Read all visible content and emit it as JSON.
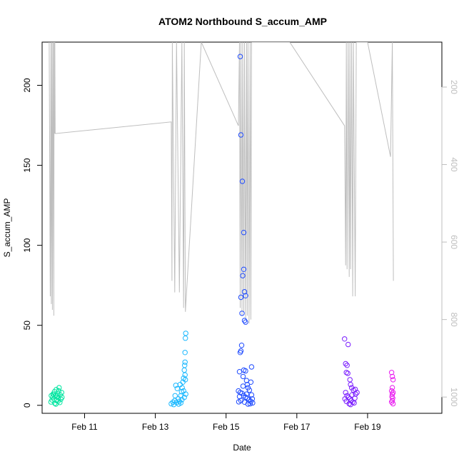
{
  "chart_data": {
    "type": "scatter",
    "title": "ATOM2 Northbound S_accum_AMP",
    "xlabel": "Date",
    "ylabel": "S_accum_AMP",
    "x_ticks": [
      "Feb 11",
      "Feb 13",
      "Feb 15",
      "Feb 17",
      "Feb 19"
    ],
    "x_tick_values": [
      11,
      13,
      15,
      17,
      19
    ],
    "xlim": [
      9.8,
      21.1
    ],
    "y_ticks": [
      0,
      50,
      100,
      150,
      200
    ],
    "ylim": [
      -5,
      227
    ],
    "y2_ticks": [
      200,
      400,
      600,
      800,
      1000
    ],
    "y2lim": [
      1042,
      84
    ],
    "y2_reversed": true,
    "grid": false,
    "legend": "none",
    "colors": {
      "cluster1": "#00e5a0",
      "cluster2": "#19b8ff",
      "cluster3": "#1f4bff",
      "cluster4": "#7a1cff",
      "cluster5": "#e91cf0",
      "secondary_line": "#bebebe"
    },
    "series": [
      {
        "color": "#00e5a0",
        "points": [
          [
            10.05,
            2.1
          ],
          [
            10.08,
            3.4
          ],
          [
            10.1,
            5.2
          ],
          [
            10.12,
            6.8
          ],
          [
            10.14,
            4.0
          ],
          [
            10.15,
            8.5
          ],
          [
            10.16,
            1.3
          ],
          [
            10.18,
            6.1
          ],
          [
            10.2,
            9.8
          ],
          [
            10.21,
            3.0
          ],
          [
            10.22,
            5.7
          ],
          [
            10.24,
            7.4
          ],
          [
            10.25,
            2.6
          ],
          [
            10.26,
            4.8
          ],
          [
            10.28,
            11.0
          ],
          [
            10.3,
            1.8
          ],
          [
            10.31,
            6.5
          ],
          [
            10.33,
            3.9
          ],
          [
            10.35,
            8.0
          ],
          [
            10.36,
            5.0
          ],
          [
            10.06,
            6.0
          ],
          [
            10.11,
            7.0
          ],
          [
            10.19,
            0.8
          ],
          [
            10.27,
            9.0
          ]
        ]
      },
      {
        "color": "#19b8ff",
        "points": [
          [
            13.45,
            1.0
          ],
          [
            13.5,
            2.0
          ],
          [
            13.52,
            0.5
          ],
          [
            13.55,
            3.0
          ],
          [
            13.58,
            12.5
          ],
          [
            13.6,
            1.8
          ],
          [
            13.62,
            10.5
          ],
          [
            13.65,
            4.0
          ],
          [
            13.68,
            2.5
          ],
          [
            13.7,
            13.0
          ],
          [
            13.72,
            6.0
          ],
          [
            13.74,
            8.5
          ],
          [
            13.75,
            3.5
          ],
          [
            13.76,
            11.0
          ],
          [
            13.78,
            14.5
          ],
          [
            13.8,
            17.0
          ],
          [
            13.8,
            9.0
          ],
          [
            13.82,
            5.0
          ],
          [
            13.82,
            22.0
          ],
          [
            13.83,
            25.0
          ],
          [
            13.84,
            27.0
          ],
          [
            13.84,
            33.0
          ],
          [
            13.85,
            42.0
          ],
          [
            13.86,
            45.0
          ],
          [
            13.85,
            16.0
          ],
          [
            13.86,
            7.0
          ],
          [
            13.84,
            19.0
          ],
          [
            13.56,
            6.0
          ],
          [
            13.66,
            0.8
          ],
          [
            13.72,
            1.5
          ]
        ]
      },
      {
        "color": "#1f4bff",
        "points": [
          [
            15.4,
            218.0
          ],
          [
            15.42,
            169.0
          ],
          [
            15.46,
            140.0
          ],
          [
            15.5,
            108.0
          ],
          [
            15.5,
            85.0
          ],
          [
            15.47,
            81.0
          ],
          [
            15.52,
            71.0
          ],
          [
            15.55,
            68.5
          ],
          [
            15.42,
            67.5
          ],
          [
            15.45,
            57.5
          ],
          [
            15.52,
            53.0
          ],
          [
            15.55,
            52.0
          ],
          [
            15.44,
            37.5
          ],
          [
            15.42,
            34.0
          ],
          [
            15.4,
            33.0
          ],
          [
            15.38,
            21.0
          ],
          [
            15.5,
            22.0
          ],
          [
            15.55,
            21.5
          ],
          [
            15.72,
            24.0
          ],
          [
            15.48,
            18.0
          ],
          [
            15.58,
            15.5
          ],
          [
            15.6,
            13.0
          ],
          [
            15.62,
            11.0
          ],
          [
            15.7,
            14.5
          ],
          [
            15.35,
            9.0
          ],
          [
            15.4,
            8.0
          ],
          [
            15.45,
            7.5
          ],
          [
            15.5,
            6.0
          ],
          [
            15.55,
            5.0
          ],
          [
            15.6,
            4.5
          ],
          [
            15.65,
            3.5
          ],
          [
            15.7,
            2.5
          ],
          [
            15.75,
            1.5
          ],
          [
            15.38,
            5.5
          ],
          [
            15.42,
            3.0
          ],
          [
            15.52,
            2.0
          ],
          [
            15.58,
            7.0
          ],
          [
            15.66,
            9.5
          ],
          [
            15.72,
            6.5
          ],
          [
            15.68,
            1.0
          ],
          [
            15.62,
            0.8
          ],
          [
            15.48,
            12.0
          ],
          [
            15.36,
            2.2
          ],
          [
            15.74,
            4.0
          ]
        ]
      },
      {
        "color": "#7a1cff",
        "points": [
          [
            18.35,
            41.5
          ],
          [
            18.45,
            38.0
          ],
          [
            18.38,
            26.0
          ],
          [
            18.42,
            25.0
          ],
          [
            18.4,
            20.5
          ],
          [
            18.44,
            20.0
          ],
          [
            18.5,
            16.0
          ],
          [
            18.52,
            13.0
          ],
          [
            18.55,
            11.0
          ],
          [
            18.6,
            9.5
          ],
          [
            18.65,
            10.0
          ],
          [
            18.38,
            8.0
          ],
          [
            18.42,
            6.0
          ],
          [
            18.46,
            5.0
          ],
          [
            18.5,
            4.0
          ],
          [
            18.54,
            3.0
          ],
          [
            18.58,
            2.0
          ],
          [
            18.62,
            1.5
          ],
          [
            18.66,
            7.0
          ],
          [
            18.4,
            2.5
          ],
          [
            18.48,
            1.0
          ],
          [
            18.56,
            6.5
          ],
          [
            18.64,
            4.5
          ],
          [
            18.7,
            8.0
          ],
          [
            18.36,
            4.0
          ],
          [
            18.52,
            0.5
          ]
        ]
      },
      {
        "color": "#e91cf0",
        "points": [
          [
            19.68,
            20.5
          ],
          [
            19.7,
            18.0
          ],
          [
            19.72,
            16.0
          ],
          [
            19.7,
            11.0
          ],
          [
            19.68,
            9.0
          ],
          [
            19.72,
            8.0
          ],
          [
            19.7,
            7.0
          ],
          [
            19.69,
            5.5
          ],
          [
            19.71,
            4.5
          ],
          [
            19.7,
            3.0
          ],
          [
            19.68,
            2.0
          ],
          [
            19.72,
            1.0
          ]
        ]
      }
    ],
    "secondary_line": {
      "axis": "right",
      "x": [
        10.0,
        10.03,
        10.05,
        10.06,
        10.08,
        10.09,
        10.11,
        10.13,
        10.14,
        10.15,
        10.16,
        10.17,
        13.45,
        13.47,
        13.48,
        13.55,
        13.6,
        13.68,
        13.75,
        13.8,
        13.82,
        13.85,
        14.3,
        15.35,
        15.38,
        15.4,
        15.42,
        15.45,
        15.47,
        15.5,
        15.52,
        15.55,
        15.58,
        15.6,
        15.62,
        15.65,
        15.68,
        15.7,
        15.72,
        16.8,
        18.35,
        18.38,
        18.4,
        18.42,
        18.45,
        18.48,
        18.5,
        18.52,
        18.55,
        18.58,
        18.6,
        18.65,
        18.68,
        19.0,
        19.65,
        19.7,
        19.73
      ],
      "y": [
        84,
        740,
        84,
        760,
        84,
        775,
        84,
        790,
        84,
        320,
        84,
        320,
        290,
        700,
        84,
        730,
        84,
        730,
        84,
        770,
        84,
        780,
        84,
        300,
        84,
        770,
        84,
        790,
        84,
        780,
        84,
        800,
        84,
        790,
        84,
        810,
        84,
        800,
        84,
        84,
        300,
        660,
        84,
        670,
        84,
        690,
        84,
        670,
        84,
        740,
        84,
        740,
        84,
        84,
        380,
        84,
        700
      ]
    }
  }
}
